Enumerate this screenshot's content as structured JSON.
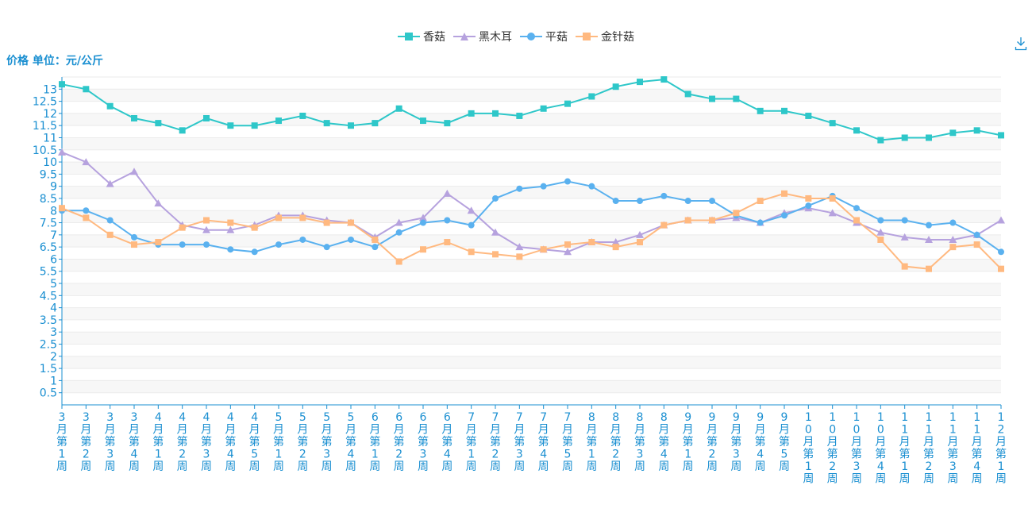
{
  "chart_data": {
    "type": "line",
    "ylabel": "价格 单位：元/公斤",
    "ylim": [
      0,
      13.5
    ],
    "yticks": [
      0.5,
      1,
      1.5,
      2,
      2.5,
      3,
      3.5,
      4,
      4.5,
      5,
      5.5,
      6,
      6.5,
      7,
      7.5,
      8,
      8.5,
      9,
      9.5,
      10,
      10.5,
      11,
      11.5,
      12,
      12.5,
      13
    ],
    "legend_position": "top-center",
    "grid": true,
    "categories": [
      "3月第1周",
      "3月第2周",
      "3月第3周",
      "3月第4周",
      "4月第1周",
      "4月第2周",
      "4月第3周",
      "4月第4周",
      "4月第5周",
      "5月第1周",
      "5月第2周",
      "5月第3周",
      "5月第4周",
      "6月第1周",
      "6月第2周",
      "6月第3周",
      "6月第4周",
      "7月第1周",
      "7月第2周",
      "7月第3周",
      "7月第4周",
      "7月第5周",
      "8月第1周",
      "8月第2周",
      "8月第3周",
      "8月第4周",
      "9月第1周",
      "9月第2周",
      "9月第3周",
      "9月第4周",
      "9月第5周",
      "10月第1周",
      "10月第2周",
      "10月第3周",
      "10月第4周",
      "11月第1周",
      "11月第2周",
      "11月第3周",
      "11月第4周",
      "12月第1周"
    ],
    "series": [
      {
        "name": "香菇",
        "color": "#2ec7c9",
        "marker": "square",
        "values": [
          13.2,
          13.0,
          12.3,
          11.8,
          11.6,
          11.3,
          11.8,
          11.5,
          11.5,
          11.7,
          11.9,
          11.6,
          11.5,
          11.6,
          12.2,
          11.7,
          11.6,
          12.0,
          12.0,
          11.9,
          12.2,
          12.4,
          12.7,
          13.1,
          13.3,
          13.4,
          12.8,
          12.6,
          12.6,
          12.1,
          12.1,
          11.9,
          11.6,
          11.3,
          10.9,
          11.0,
          11.0,
          11.2,
          11.3,
          11.1
        ]
      },
      {
        "name": "黑木耳",
        "color": "#b6a2de",
        "marker": "triangle",
        "values": [
          10.4,
          10.0,
          9.1,
          9.6,
          8.3,
          7.4,
          7.2,
          7.2,
          7.4,
          7.8,
          7.8,
          7.6,
          7.5,
          6.9,
          7.5,
          7.7,
          8.7,
          8.0,
          7.1,
          6.5,
          6.4,
          6.3,
          6.7,
          6.7,
          7.0,
          7.4,
          7.6,
          7.6,
          7.7,
          7.5,
          7.9,
          8.1,
          7.9,
          7.5,
          7.1,
          6.9,
          6.8,
          6.8,
          7.0,
          7.6
        ]
      },
      {
        "name": "平菇",
        "color": "#5ab1ef",
        "marker": "circle",
        "values": [
          8.0,
          8.0,
          7.6,
          6.9,
          6.6,
          6.6,
          6.6,
          6.4,
          6.3,
          6.6,
          6.8,
          6.5,
          6.8,
          6.5,
          7.1,
          7.5,
          7.6,
          7.4,
          8.5,
          8.9,
          9.0,
          9.2,
          9.0,
          8.4,
          8.4,
          8.6,
          8.4,
          8.4,
          7.8,
          7.5,
          7.8,
          8.2,
          8.6,
          8.1,
          7.6,
          7.6,
          7.4,
          7.5,
          7.0,
          6.3
        ]
      },
      {
        "name": "金针菇",
        "color": "#ffb980",
        "marker": "square",
        "values": [
          8.1,
          7.7,
          7.0,
          6.6,
          6.7,
          7.3,
          7.6,
          7.5,
          7.3,
          7.7,
          7.7,
          7.5,
          7.5,
          6.8,
          5.9,
          6.4,
          6.7,
          6.3,
          6.2,
          6.1,
          6.4,
          6.6,
          6.7,
          6.5,
          6.7,
          7.4,
          7.6,
          7.6,
          7.9,
          8.4,
          8.7,
          8.5,
          8.5,
          7.6,
          6.8,
          5.7,
          5.6,
          6.5,
          6.6,
          5.6
        ]
      }
    ]
  },
  "toolbar": {
    "download_icon": "download-icon"
  },
  "colors": {
    "axis": "#1a8fd1",
    "grid": "#ebebeb",
    "band": "#f7f7f7"
  }
}
